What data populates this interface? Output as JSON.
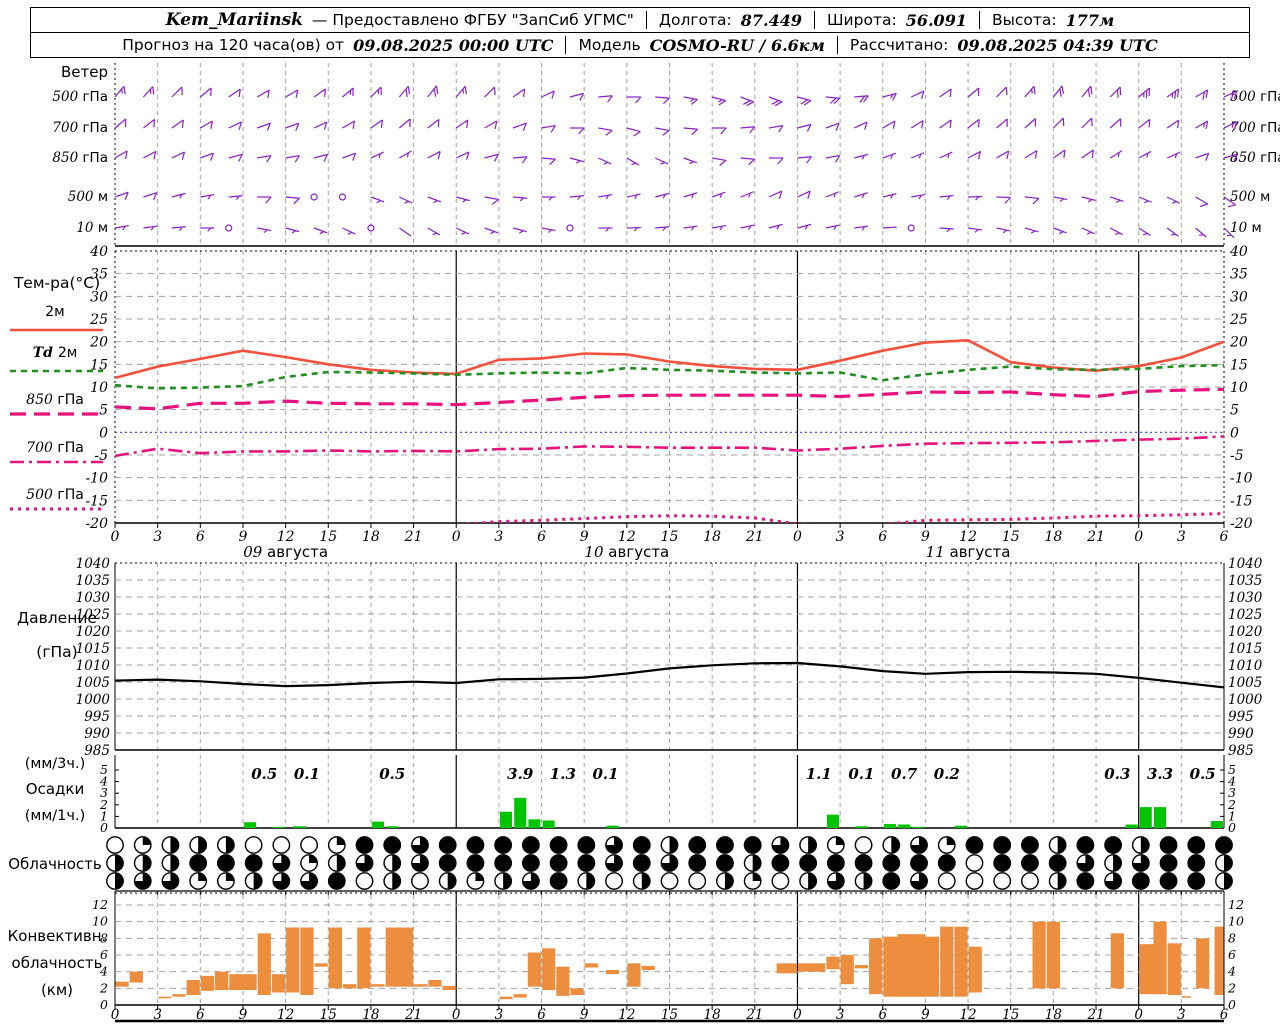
{
  "header": {
    "station": "Kem_Mariinsk",
    "provider": "— Предоставлено ФГБУ \"ЗапСиб УГМС\"",
    "lon_label": "Долгота:",
    "lon": "87.449",
    "lat_label": "Широта:",
    "lat": "56.091",
    "alt_label": "Высота:",
    "alt": "177м",
    "line2_prefix": "Прогноз на 120 часа(ов) от",
    "run_time": "09.08.2025 00:00 UTC",
    "model_label": "Модель",
    "model": "COSMO-RU / 6.6км",
    "calc_label": "Рассчитано:",
    "calc_time": "09.08.2025 04:39 UTC"
  },
  "colors": {
    "barb": "#8a1ecb",
    "t2m": "#f4503c",
    "td": "#1f8f1f",
    "pink": "#e8117e",
    "zero": "#3a3aff",
    "pressure": "#000000",
    "precip": "#00c400",
    "convective": "#ec8e3e",
    "grid": "#a0a0a0",
    "axis": "#000000"
  },
  "labels": {
    "wind_title": "Ветер",
    "wind_levels": [
      {
        "num": "500",
        "unit": "гПа"
      },
      {
        "num": "700",
        "unit": "гПа"
      },
      {
        "num": "850",
        "unit": "гПа"
      },
      {
        "num": "500",
        "unit": "м"
      },
      {
        "num": "10",
        "unit": "м"
      }
    ],
    "temp_title": "Тем-ра(°C)",
    "temp_legend": [
      {
        "it": "",
        "ro": "2м"
      },
      {
        "it": "Td",
        "ro": "2м"
      },
      {
        "it": "850",
        "ro": "гПа"
      },
      {
        "it": "700",
        "ro": "гПа"
      },
      {
        "it": "500",
        "ro": "гПа"
      }
    ],
    "pressure_title": [
      "Давление",
      "(гПа)"
    ],
    "precip_title": [
      "(мм/3ч.)",
      "Осадки",
      "(мм/1ч.)"
    ],
    "cloud_title": "Облачность",
    "conv_title": [
      "Конвективн.",
      "облачность",
      "(км)"
    ],
    "day_labels": [
      {
        "num": "09",
        "name": "августа",
        "hour": 12
      },
      {
        "num": "10",
        "name": "августа",
        "hour": 36
      },
      {
        "num": "11",
        "name": "августа",
        "hour": 60
      }
    ]
  },
  "chart_data": [
    {
      "type": "wind-barbs",
      "title": "Ветер",
      "hours_step": 2,
      "levels": [
        "500 гПа",
        "700 гПа",
        "850 гПа",
        "500 м",
        "10 м"
      ],
      "dirs": [
        [
          40,
          42,
          45,
          50,
          55,
          60,
          60,
          55,
          50,
          45,
          40,
          38,
          40,
          45,
          55,
          65,
          75,
          85,
          90,
          95,
          100,
          105,
          110,
          110,
          105,
          95,
          85,
          75,
          65,
          55,
          50,
          45,
          40,
          38,
          40,
          45,
          50,
          55,
          60,
          65
        ],
        [
          50,
          52,
          55,
          60,
          65,
          70,
          70,
          65,
          60,
          55,
          50,
          52,
          55,
          60,
          70,
          80,
          90,
          100,
          105,
          100,
          95,
          90,
          85,
          80,
          75,
          70,
          65,
          60,
          58,
          55,
          52,
          50,
          48,
          45,
          45,
          48,
          52,
          56,
          60,
          64
        ],
        [
          60,
          62,
          65,
          70,
          75,
          80,
          80,
          75,
          70,
          65,
          60,
          62,
          65,
          75,
          85,
          95,
          105,
          115,
          120,
          115,
          110,
          100,
          95,
          90,
          85,
          80,
          75,
          70,
          68,
          65,
          62,
          60,
          58,
          55,
          55,
          58,
          62,
          66,
          70,
          74
        ],
        [
          70,
          72,
          75,
          80,
          85,
          90,
          95,
          100,
          105,
          110,
          115,
          110,
          105,
          100,
          95,
          90,
          85,
          80,
          78,
          75,
          72,
          70,
          68,
          65,
          65,
          68,
          72,
          76,
          80,
          84,
          88,
          92,
          96,
          100,
          104,
          108,
          112,
          116,
          120,
          124
        ],
        [
          80,
          82,
          85,
          90,
          95,
          100,
          105,
          110,
          115,
          120,
          125,
          120,
          115,
          110,
          105,
          100,
          95,
          90,
          88,
          85,
          82,
          80,
          78,
          75,
          75,
          78,
          82,
          86,
          90,
          94,
          98,
          102,
          106,
          110,
          114,
          118,
          122,
          126,
          130,
          134
        ]
      ],
      "spds": [
        [
          15,
          15,
          12,
          12,
          10,
          10,
          10,
          12,
          15,
          15,
          18,
          18,
          15,
          12,
          10,
          10,
          8,
          10,
          12,
          12,
          15,
          15,
          18,
          18,
          20,
          20,
          18,
          15,
          12,
          10,
          10,
          12,
          15,
          18,
          20,
          22,
          25,
          25,
          22,
          20
        ],
        [
          12,
          12,
          10,
          10,
          8,
          8,
          10,
          10,
          12,
          12,
          10,
          10,
          8,
          8,
          10,
          10,
          12,
          12,
          10,
          8,
          8,
          10,
          10,
          12,
          12,
          10,
          10,
          8,
          8,
          10,
          12,
          12,
          10,
          10,
          8,
          8,
          10,
          12,
          15,
          15
        ],
        [
          10,
          10,
          8,
          8,
          8,
          10,
          10,
          8,
          8,
          6,
          6,
          8,
          8,
          10,
          10,
          8,
          6,
          6,
          5,
          5,
          6,
          8,
          8,
          10,
          10,
          8,
          6,
          5,
          5,
          6,
          8,
          8,
          10,
          10,
          8,
          6,
          5,
          6,
          8,
          10
        ],
        [
          8,
          8,
          6,
          6,
          6,
          8,
          8,
          0,
          0,
          5,
          5,
          6,
          6,
          8,
          5,
          3,
          3,
          3,
          3,
          3,
          5,
          6,
          6,
          8,
          8,
          6,
          5,
          5,
          5,
          6,
          6,
          8,
          8,
          6,
          5,
          5,
          6,
          6,
          8,
          8
        ],
        [
          5,
          5,
          3,
          3,
          0,
          5,
          5,
          3,
          3,
          0,
          2,
          3,
          3,
          5,
          3,
          3,
          0,
          3,
          3,
          3,
          5,
          5,
          6,
          6,
          5,
          3,
          3,
          2,
          0,
          3,
          3,
          5,
          5,
          3,
          3,
          3,
          5,
          5,
          6,
          6
        ]
      ]
    },
    {
      "type": "line",
      "title": "Тем-ра(°C)",
      "x_hours_step": 3,
      "ylim": [
        -20,
        40
      ],
      "ytick_step": 5,
      "zero_line": true,
      "series": [
        {
          "name": "2м",
          "values": [
            12.0,
            14.5,
            16.2,
            18.0,
            16.6,
            15.0,
            13.8,
            13.2,
            12.9,
            16.0,
            16.3,
            17.4,
            17.2,
            15.6,
            14.6,
            14.0,
            13.8,
            15.8,
            18.0,
            19.8,
            20.3,
            15.5,
            14.3,
            13.6,
            14.6,
            16.5,
            20.0
          ]
        },
        {
          "name": "Td 2м",
          "values": [
            10.4,
            9.7,
            9.9,
            10.2,
            12.2,
            13.3,
            13.2,
            13.0,
            12.7,
            13.0,
            13.2,
            13.0,
            14.2,
            13.8,
            13.6,
            13.2,
            13.0,
            13.2,
            11.5,
            12.8,
            13.8,
            14.5,
            13.9,
            13.8,
            14.0,
            14.6,
            14.8
          ]
        },
        {
          "name": "850 гПа",
          "values": [
            5.6,
            5.2,
            6.4,
            6.4,
            6.9,
            6.4,
            6.3,
            6.3,
            6.1,
            6.6,
            7.1,
            7.7,
            8.1,
            8.2,
            8.2,
            8.2,
            8.2,
            7.9,
            8.4,
            8.9,
            8.8,
            8.9,
            8.3,
            7.9,
            9.0,
            9.3,
            9.5
          ]
        },
        {
          "name": "700 гПа",
          "values": [
            -5.2,
            -3.6,
            -4.6,
            -4.2,
            -4.2,
            -4.0,
            -4.2,
            -4.1,
            -4.2,
            -3.7,
            -3.6,
            -3.1,
            -3.2,
            -3.4,
            -3.4,
            -3.4,
            -4.0,
            -3.6,
            -3.0,
            -2.5,
            -2.4,
            -2.3,
            -2.2,
            -1.9,
            -1.6,
            -1.4,
            -0.9
          ]
        },
        {
          "name": "500 гПа",
          "values": [
            -22,
            -22,
            -22,
            -22,
            -22,
            -22,
            -22,
            -22,
            -20.4,
            -19.7,
            -19.4,
            -19.0,
            -18.6,
            -18.4,
            -18.5,
            -18.9,
            -20.2,
            -20.8,
            -20.3,
            -19.4,
            -19.3,
            -19.2,
            -18.9,
            -18.5,
            -18.4,
            -18.2,
            -17.9
          ]
        }
      ]
    },
    {
      "type": "line",
      "title": "Давление (гПа)",
      "x_hours_step": 3,
      "ylim": [
        985,
        1040
      ],
      "ytick_step": 5,
      "values": [
        1005.4,
        1005.7,
        1005.2,
        1004.4,
        1003.8,
        1004.1,
        1004.7,
        1005.1,
        1004.7,
        1005.8,
        1005.9,
        1006.3,
        1007.5,
        1009.0,
        1009.9,
        1010.5,
        1010.6,
        1009.6,
        1008.2,
        1007.4,
        1007.9,
        1008.0,
        1007.8,
        1007.4,
        1006.2,
        1004.8,
        1003.4
      ]
    },
    {
      "type": "bar",
      "title": "Осадки (мм/1ч.)",
      "ylim": [
        0,
        5
      ],
      "bars_1h": [
        [
          9.5,
          0.5
        ],
        [
          11.5,
          0.1
        ],
        [
          13,
          0.15
        ],
        [
          18.5,
          0.55
        ],
        [
          19.5,
          0.15
        ],
        [
          27.5,
          1.4
        ],
        [
          28.5,
          2.6
        ],
        [
          29.5,
          0.75
        ],
        [
          30.5,
          0.65
        ],
        [
          35,
          0.2
        ],
        [
          50.5,
          1.15
        ],
        [
          52.5,
          0.15
        ],
        [
          54.5,
          0.35
        ],
        [
          55.5,
          0.3
        ],
        [
          56.5,
          0.1
        ],
        [
          59.5,
          0.2
        ],
        [
          71.5,
          0.3
        ],
        [
          72.5,
          1.8
        ],
        [
          73.5,
          1.8
        ],
        [
          77.5,
          0.6
        ]
      ],
      "labels_3h": [
        [
          10.5,
          "0.5"
        ],
        [
          13.5,
          "0.1"
        ],
        [
          19.5,
          "0.5"
        ],
        [
          28.5,
          "3.9"
        ],
        [
          31.5,
          "1.3"
        ],
        [
          34.5,
          "0.1"
        ],
        [
          49.5,
          "1.1"
        ],
        [
          52.5,
          "0.1"
        ],
        [
          55.5,
          "0.7"
        ],
        [
          58.5,
          "0.2"
        ],
        [
          70.5,
          "0.3"
        ],
        [
          73.5,
          "3.3"
        ],
        [
          76.5,
          "0.5"
        ]
      ]
    },
    {
      "type": "cloud-cover",
      "title": "Облачность",
      "rows": [
        [
          0,
          0.25,
          0.5,
          0.5,
          0.5,
          0,
          0,
          0,
          0.25,
          1,
          1,
          0.75,
          1,
          1,
          1,
          1,
          1,
          1,
          0.75,
          1,
          0.5,
          1,
          1,
          1,
          0.75,
          0.5,
          0.25,
          0,
          0.5,
          0.75,
          0.25,
          1,
          1,
          1,
          0.5,
          1,
          1,
          0.5,
          1,
          1,
          1
        ],
        [
          0.5,
          0.5,
          0.5,
          1,
          1,
          1,
          0.75,
          0.25,
          0.5,
          0.75,
          0.5,
          0.75,
          1,
          1,
          1,
          1,
          1,
          1,
          0.75,
          1,
          0.75,
          1,
          1,
          0.5,
          1,
          1,
          1,
          1,
          1,
          1,
          1,
          0,
          1,
          1,
          1,
          0.75,
          0.5,
          0.75,
          1,
          1,
          0.5
        ],
        [
          0.5,
          0.75,
          0.75,
          0.25,
          0.25,
          0.5,
          0.75,
          0.75,
          1,
          0,
          0.5,
          0,
          0.5,
          0.25,
          0.5,
          0.75,
          1,
          0.5,
          0,
          0.5,
          0,
          0,
          0.5,
          0.25,
          0,
          0.5,
          0.75,
          0.5,
          1,
          0.75,
          0,
          0,
          0,
          0,
          0.5,
          1,
          0.75,
          1,
          1,
          1,
          0.5
        ]
      ]
    },
    {
      "type": "floating-bar",
      "title": "Конвективн. облачность (км)",
      "ylim": [
        0,
        12
      ],
      "bars": [
        [
          0,
          1,
          2.2,
          2.8
        ],
        [
          1,
          2,
          2.7,
          4
        ],
        [
          3,
          4,
          0.8,
          1
        ],
        [
          4,
          5,
          1,
          1.3
        ],
        [
          5,
          6,
          1.2,
          3
        ],
        [
          6,
          7,
          1.7,
          3.5
        ],
        [
          7,
          8,
          1.8,
          4
        ],
        [
          8,
          10,
          1.8,
          3.7
        ],
        [
          10,
          11,
          1.2,
          8.6
        ],
        [
          11,
          12,
          1.5,
          3.7
        ],
        [
          12,
          13,
          1.5,
          9.3
        ],
        [
          13,
          14,
          1.2,
          9.3
        ],
        [
          14,
          15,
          4.6,
          5
        ],
        [
          15,
          16,
          2,
          9.3
        ],
        [
          16,
          17,
          2,
          2.5
        ],
        [
          17,
          18,
          2,
          9.3
        ],
        [
          18,
          19,
          2.2,
          2.5
        ],
        [
          19,
          21,
          2.2,
          9.3
        ],
        [
          21,
          22,
          2.2,
          2.5
        ],
        [
          22,
          23,
          2.2,
          3
        ],
        [
          23,
          24,
          1.8,
          2.3
        ],
        [
          27,
          28,
          0.7,
          1
        ],
        [
          28,
          29,
          0.9,
          1.3
        ],
        [
          29,
          30,
          2.2,
          6.3
        ],
        [
          30,
          31,
          1.8,
          6.8
        ],
        [
          31,
          32,
          1.1,
          4.6
        ],
        [
          32,
          33,
          1.2,
          2
        ],
        [
          33,
          34,
          4.5,
          5
        ],
        [
          34.5,
          35.5,
          3.7,
          4.2
        ],
        [
          36,
          37,
          2.2,
          5
        ],
        [
          37,
          38,
          4.2,
          4.7
        ],
        [
          46.5,
          48,
          3.8,
          5
        ],
        [
          48,
          50,
          4,
          5
        ],
        [
          50,
          51,
          4.3,
          5.8
        ],
        [
          51,
          52,
          2.5,
          6
        ],
        [
          52,
          53,
          4.4,
          4.8
        ],
        [
          53,
          54,
          1.3,
          8
        ],
        [
          54,
          58,
          1,
          8.2
        ],
        [
          55,
          57,
          1,
          8.5
        ],
        [
          58,
          59,
          1,
          9.4
        ],
        [
          59,
          60,
          1,
          9.4
        ],
        [
          60,
          61,
          1.5,
          7
        ],
        [
          64.5,
          65.5,
          2,
          10
        ],
        [
          65.5,
          66.5,
          2,
          10
        ],
        [
          70,
          71,
          2,
          8.6
        ],
        [
          72,
          74,
          1.3,
          7.3
        ],
        [
          73,
          74,
          1.3,
          10
        ],
        [
          74,
          75,
          1.2,
          7.4
        ],
        [
          75,
          75.7,
          0.9,
          1.05
        ],
        [
          76,
          77,
          2,
          8
        ],
        [
          77.3,
          78,
          1.2,
          9.4
        ]
      ]
    }
  ],
  "x_axis": {
    "total_hours": 78,
    "tick_step": 3,
    "day_boundaries": [
      24,
      48,
      72
    ]
  }
}
